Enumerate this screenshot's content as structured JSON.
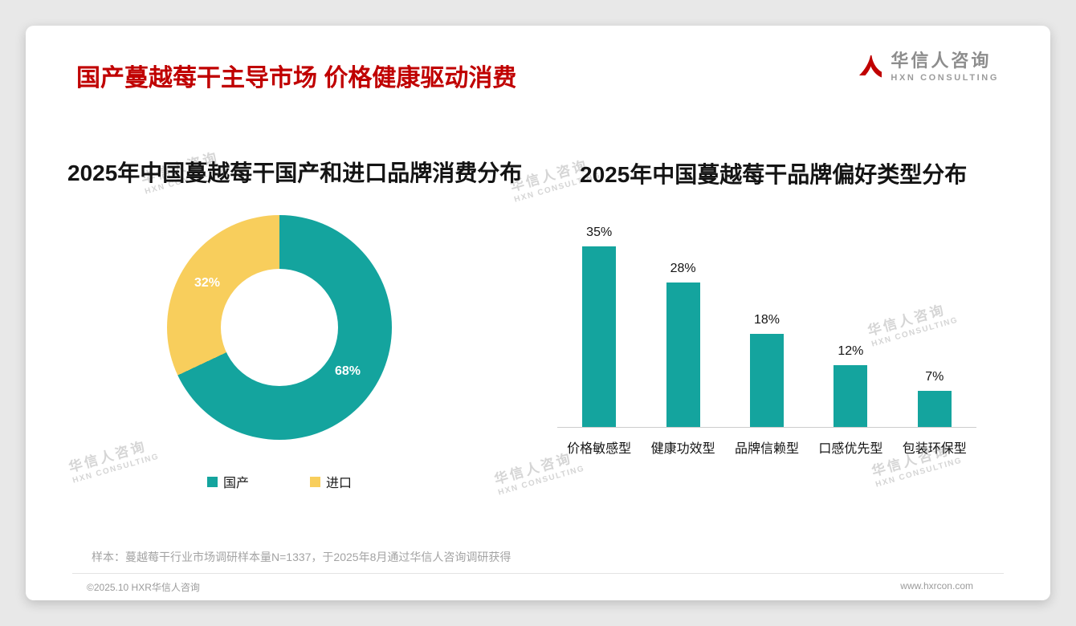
{
  "page": {
    "title": "国产蔓越莓干主导市场 价格健康驱动消费",
    "sample_note": "样本：蔓越莓干行业市场调研样本量N=1337，于2025年8月通过华信人咨询调研获得",
    "footer_left": "©2025.10 HXR华信人咨询",
    "footer_right": "www.hxrcon.com"
  },
  "logo": {
    "name_cn": "华信人咨询",
    "name_en": "HXN CONSULTING"
  },
  "watermark": {
    "line1": "华信人咨询",
    "line2": "HXN CONSULTING"
  },
  "colors": {
    "teal": "#14A49E",
    "yellow": "#F8CE5C",
    "title_red": "#C00000"
  },
  "chart_data": [
    {
      "type": "pie",
      "donut": true,
      "title": "2025年中国蔓越莓干国产和进口品牌消费分布",
      "labels": [
        "国产",
        "进口"
      ],
      "values": [
        68,
        32
      ],
      "value_labels": [
        "68%",
        "32%"
      ],
      "colors": [
        "#14A49E",
        "#F8CE5C"
      ],
      "legend_position": "bottom"
    },
    {
      "type": "bar",
      "title": "2025年中国蔓越莓干品牌偏好类型分布",
      "categories": [
        "价格敏感型",
        "健康功效型",
        "品牌信赖型",
        "口感优先型",
        "包装环保型"
      ],
      "values": [
        35,
        28,
        18,
        12,
        7
      ],
      "value_labels": [
        "35%",
        "28%",
        "18%",
        "12%",
        "7%"
      ],
      "bar_color": "#14A49E",
      "ylim": [
        0,
        40
      ],
      "xlabel": "",
      "ylabel": "",
      "grid": false,
      "legend_position": "none"
    }
  ]
}
